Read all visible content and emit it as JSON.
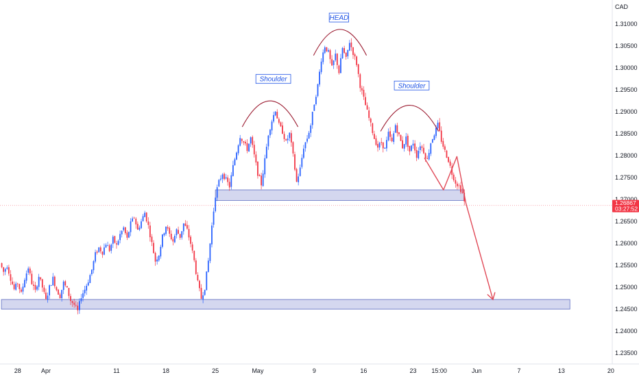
{
  "chart_data": {
    "type": "candlestick",
    "currency": "CAD",
    "ylim": [
      1.2325,
      1.3155
    ],
    "y_ticks": [
      "1.31000",
      "1.30500",
      "1.30000",
      "1.29500",
      "1.29000",
      "1.28500",
      "1.28000",
      "1.27500",
      "1.27000",
      "1.26500",
      "1.26000",
      "1.25500",
      "1.25000",
      "1.24500",
      "1.24000",
      "1.23500"
    ],
    "x_ticks": [
      {
        "label": "28",
        "day": -3
      },
      {
        "label": "Apr",
        "day": 1
      },
      {
        "label": "11",
        "day": 11
      },
      {
        "label": "18",
        "day": 18
      },
      {
        "label": "25",
        "day": 25
      },
      {
        "label": "May",
        "day": 31
      },
      {
        "label": "9",
        "day": 39
      },
      {
        "label": "16",
        "day": 46
      },
      {
        "label": "23",
        "day": 53
      },
      {
        "label": "15:00",
        "day": 56.7
      },
      {
        "label": "Jun",
        "day": 62
      },
      {
        "label": "7",
        "day": 68
      },
      {
        "label": "13",
        "day": 74
      },
      {
        "label": "20",
        "day": 81
      }
    ],
    "x_range_days": [
      -5.5,
      81.2
    ],
    "current_price": {
      "value": "1.26867",
      "numeric": 1.26867,
      "countdown": "03:27:52",
      "color": "#f23645"
    },
    "candle_colors": {
      "up": "#2962ff",
      "down": "#f23645"
    },
    "price_path": [
      [
        -5.5,
        1.2555
      ],
      [
        -5,
        1.2535
      ],
      [
        -4.5,
        1.255
      ],
      [
        -4,
        1.252
      ],
      [
        -3.5,
        1.2495
      ],
      [
        -3,
        1.251
      ],
      [
        -2.5,
        1.2485
      ],
      [
        -2,
        1.252
      ],
      [
        -1.5,
        1.2545
      ],
      [
        -1,
        1.251
      ],
      [
        -0.5,
        1.249
      ],
      [
        0,
        1.2525
      ],
      [
        0.5,
        1.25
      ],
      [
        1,
        1.247
      ],
      [
        1.5,
        1.25
      ],
      [
        2,
        1.252
      ],
      [
        2.5,
        1.2495
      ],
      [
        3,
        1.248
      ],
      [
        3.5,
        1.251
      ],
      [
        4,
        1.2495
      ],
      [
        4.5,
        1.247
      ],
      [
        5,
        1.246
      ],
      [
        5.5,
        1.2445
      ],
      [
        6,
        1.248
      ],
      [
        6.5,
        1.2495
      ],
      [
        7,
        1.2515
      ],
      [
        7.5,
        1.254
      ],
      [
        8,
        1.2575
      ],
      [
        8.5,
        1.259
      ],
      [
        9,
        1.258
      ],
      [
        9.5,
        1.26
      ],
      [
        10,
        1.2585
      ],
      [
        10.5,
        1.261
      ],
      [
        11,
        1.2595
      ],
      [
        11.5,
        1.262
      ],
      [
        12,
        1.2635
      ],
      [
        12.5,
        1.261
      ],
      [
        13,
        1.2645
      ],
      [
        13.5,
        1.266
      ],
      [
        14,
        1.263
      ],
      [
        14.5,
        1.265
      ],
      [
        15,
        1.267
      ],
      [
        15.5,
        1.264
      ],
      [
        16,
        1.26
      ],
      [
        16.5,
        1.256
      ],
      [
        17,
        1.2575
      ],
      [
        17.5,
        1.2615
      ],
      [
        18,
        1.264
      ],
      [
        18.5,
        1.262
      ],
      [
        19,
        1.2605
      ],
      [
        19.5,
        1.263
      ],
      [
        20,
        1.2615
      ],
      [
        20.5,
        1.2645
      ],
      [
        21,
        1.263
      ],
      [
        21.5,
        1.26
      ],
      [
        22,
        1.256
      ],
      [
        22.5,
        1.251
      ],
      [
        23,
        1.2475
      ],
      [
        23.5,
        1.25
      ],
      [
        24,
        1.256
      ],
      [
        24.5,
        1.264
      ],
      [
        25,
        1.271
      ],
      [
        25.5,
        1.274
      ],
      [
        26,
        1.276
      ],
      [
        26.5,
        1.2745
      ],
      [
        27,
        1.273
      ],
      [
        27.5,
        1.2775
      ],
      [
        28,
        1.281
      ],
      [
        28.5,
        1.2845
      ],
      [
        29,
        1.283
      ],
      [
        29.5,
        1.2815
      ],
      [
        30,
        1.284
      ],
      [
        30.5,
        1.28
      ],
      [
        31,
        1.276
      ],
      [
        31.5,
        1.2735
      ],
      [
        32,
        1.279
      ],
      [
        32.5,
        1.285
      ],
      [
        33,
        1.288
      ],
      [
        33.5,
        1.2905
      ],
      [
        34,
        1.287
      ],
      [
        34.5,
        1.2855
      ],
      [
        35,
        1.283
      ],
      [
        35.5,
        1.285
      ],
      [
        36,
        1.28
      ],
      [
        36.5,
        1.274
      ],
      [
        37,
        1.277
      ],
      [
        37.5,
        1.282
      ],
      [
        38,
        1.284
      ],
      [
        38.5,
        1.287
      ],
      [
        39,
        1.292
      ],
      [
        39.5,
        1.296
      ],
      [
        40,
        1.302
      ],
      [
        40.5,
        1.305
      ],
      [
        41,
        1.3035
      ],
      [
        41.5,
        1.3
      ],
      [
        42,
        1.303
      ],
      [
        42.5,
        1.299
      ],
      [
        43,
        1.3045
      ],
      [
        43.5,
        1.302
      ],
      [
        44,
        1.306
      ],
      [
        44.5,
        1.3035
      ],
      [
        45,
        1.301
      ],
      [
        45.5,
        1.296
      ],
      [
        46,
        1.293
      ],
      [
        46.5,
        1.29
      ],
      [
        47,
        1.287
      ],
      [
        47.5,
        1.284
      ],
      [
        48,
        1.282
      ],
      [
        48.5,
        1.283
      ],
      [
        49,
        1.2815
      ],
      [
        49.5,
        1.285
      ],
      [
        50,
        1.283
      ],
      [
        50.5,
        1.287
      ],
      [
        51,
        1.2845
      ],
      [
        51.5,
        1.282
      ],
      [
        52,
        1.284
      ],
      [
        52.5,
        1.281
      ],
      [
        53,
        1.283
      ],
      [
        53.5,
        1.28
      ],
      [
        54,
        1.2825
      ],
      [
        54.5,
        1.281
      ],
      [
        55,
        1.279
      ],
      [
        55.5,
        1.283
      ],
      [
        56,
        1.285
      ],
      [
        56.5,
        1.287
      ],
      [
        57,
        1.2835
      ],
      [
        57.5,
        1.281
      ],
      [
        58,
        1.279
      ],
      [
        58.5,
        1.276
      ],
      [
        59,
        1.274
      ],
      [
        59.5,
        1.273
      ],
      [
        60,
        1.2715
      ],
      [
        60.3,
        1.269
      ]
    ],
    "zones": [
      {
        "name": "resistance-support-zone",
        "x1": 25.0,
        "x2": 60.2,
        "y_top": 1.2722,
        "y_bot": 1.2698
      },
      {
        "name": "lower-support-zone",
        "x1": -5.3,
        "x2": 75.2,
        "y_top": 1.2472,
        "y_bot": 1.245
      }
    ],
    "arcs": [
      {
        "name": "left-shoulder-arc",
        "x1": 28.8,
        "x2": 36.7,
        "peak": 1.2925
      },
      {
        "name": "head-arc",
        "x1": 38.9,
        "x2": 46.4,
        "peak": 1.3088
      },
      {
        "name": "right-shoulder-arc",
        "x1": 48.4,
        "x2": 56.6,
        "peak": 1.2915
      }
    ],
    "annotations": [
      {
        "name": "left-shoulder-label",
        "text": "Shoulder",
        "x": 33.2,
        "y": 1.2975
      },
      {
        "name": "head-label",
        "text": "HEAD",
        "x": 42.5,
        "y": 1.3115
      },
      {
        "name": "right-shoulder-label",
        "text": "Shoulder",
        "x": 52.8,
        "y": 1.296
      }
    ],
    "projection": {
      "color": "#e04856",
      "points": [
        [
          54.6,
          1.2795
        ],
        [
          57.3,
          1.2722
        ],
        [
          59.2,
          1.2798
        ],
        [
          60.5,
          1.269
        ],
        [
          64.3,
          1.2472
        ]
      ]
    }
  }
}
